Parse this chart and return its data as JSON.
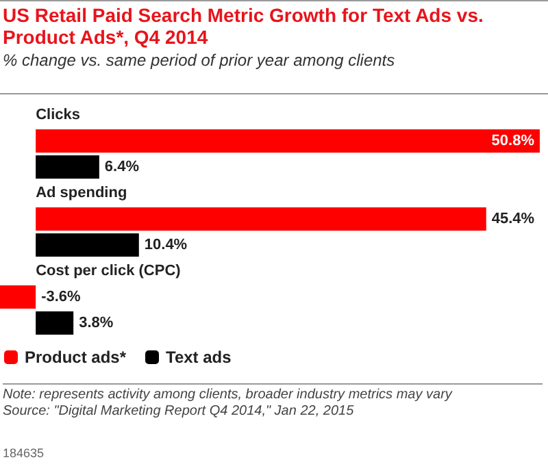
{
  "chart_data": {
    "type": "bar",
    "orientation": "horizontal",
    "title": "US Retail Paid Search Metric Growth for Text Ads vs. Product Ads*, Q4 2014",
    "subtitle": "% change vs. same period of prior year among clients",
    "categories": [
      "Clicks",
      "Ad spending",
      "Cost per click (CPC)"
    ],
    "series": [
      {
        "name": "Product ads*",
        "color": "#ff0000",
        "values": [
          50.8,
          45.4,
          -3.6
        ],
        "value_labels": [
          "50.8%",
          "45.4%",
          "-3.6%"
        ]
      },
      {
        "name": "Text ads",
        "color": "#000000",
        "values": [
          6.4,
          10.4,
          3.8
        ],
        "value_labels": [
          "6.4%",
          "10.4%",
          "3.8%"
        ]
      }
    ],
    "legend": "bottom left",
    "tick_labels": "y",
    "annotations": [
      "Note: represents activity among clients, broader industry metrics may vary",
      "Source: \"Digital Marketing Report Q4 2014,\" Jan 22, 2015",
      "184635"
    ]
  }
}
